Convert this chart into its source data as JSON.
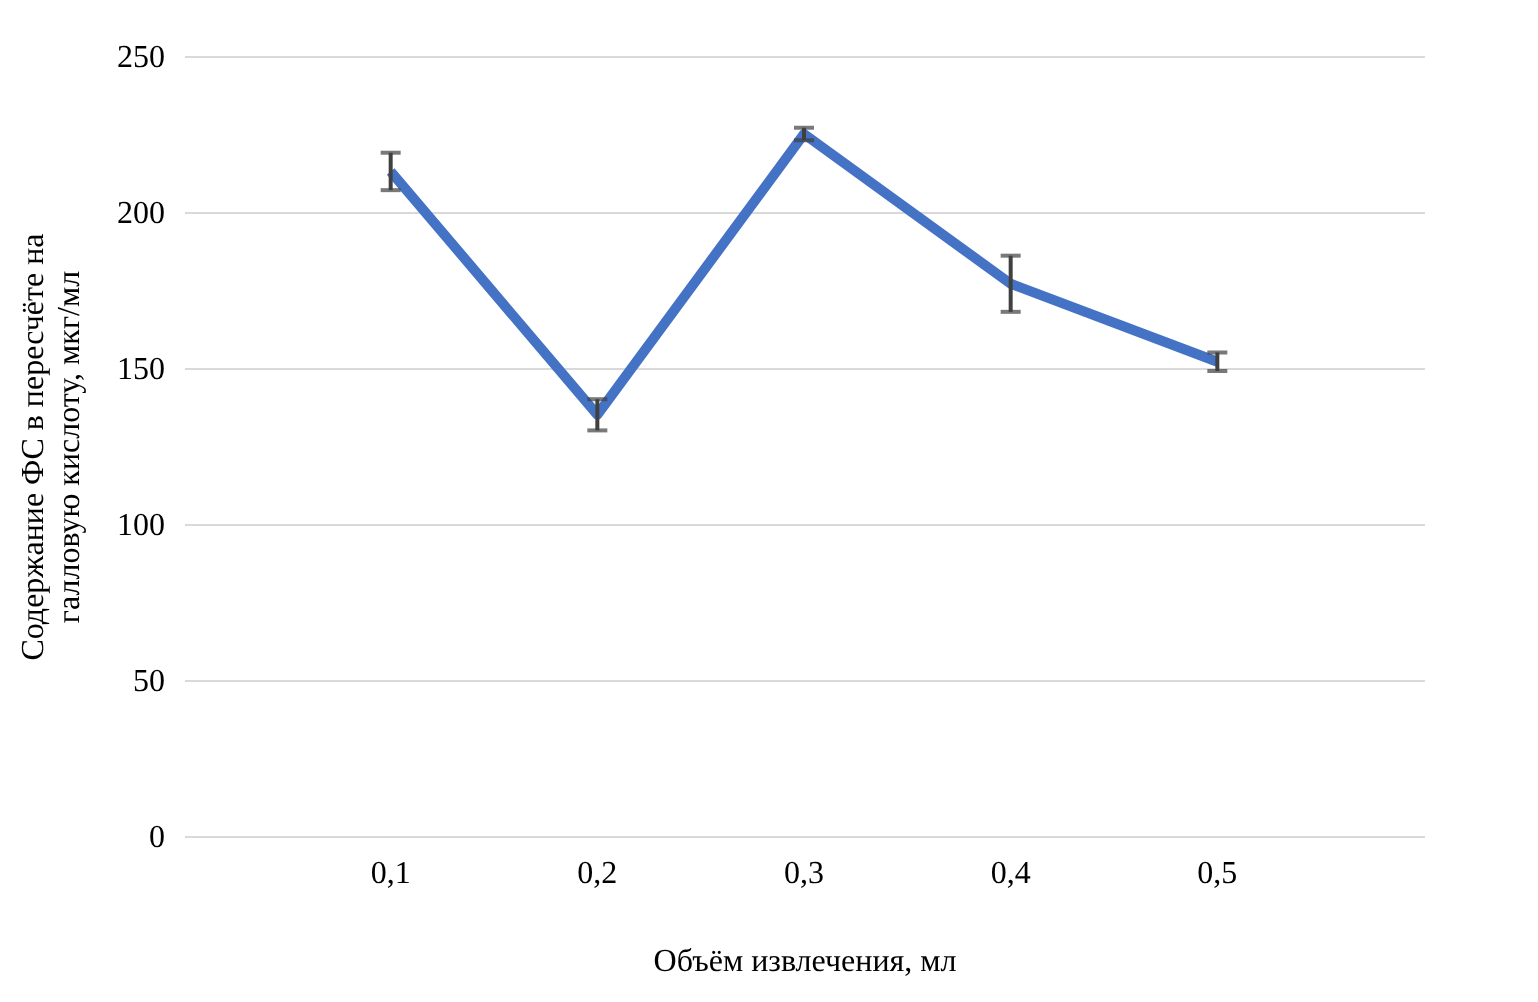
{
  "chart_data": {
    "type": "line",
    "xlabel": "Объём извлечения, мл",
    "ylabel": "Содержание ФС в пересчёте на галловую кислоту, мкг/мл",
    "categories": [
      "0,1",
      "0,2",
      "0,3",
      "0,4",
      "0,5"
    ],
    "series": [
      {
        "color": "#4472c4",
        "values": [
          213,
          135,
          225,
          177,
          152
        ],
        "errors": [
          6,
          5,
          2,
          9,
          3
        ]
      }
    ],
    "ylim": [
      0,
      250
    ],
    "yticks": [
      0,
      50,
      100,
      150,
      200,
      250
    ],
    "grid": "y",
    "marker": "none",
    "line_style": "solid"
  }
}
